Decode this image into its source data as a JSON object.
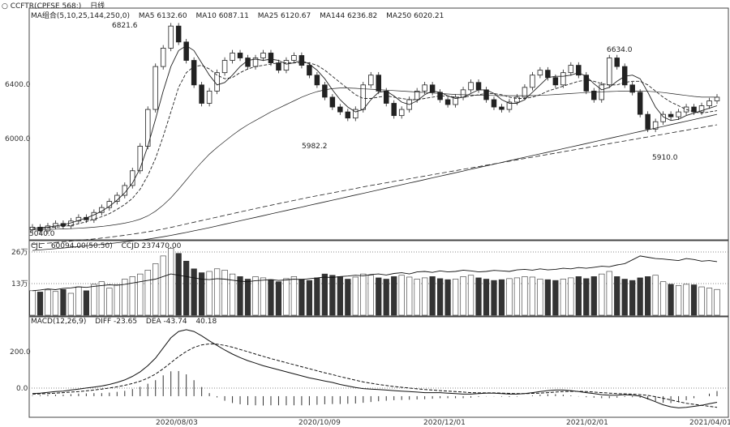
{
  "header": {
    "instrument": "○ CCFTR(CPFSE 568:)",
    "period": "日线",
    "ma_legend": [
      "MA组合(5,10,25,144,250,0)",
      "MA5 6132.60",
      "MA10 6087.11",
      "MA25 6120.67",
      "MA144 6236.82",
      "MA250 6020.21"
    ]
  },
  "price_panel": {
    "annotations": {
      "high_left": "6821.6",
      "low_mid": "5982.2",
      "high_right": "6634.0",
      "low_right": "5910.0",
      "bottom_left": "5040.0"
    }
  },
  "volume_panel": {
    "legend": [
      "CJL",
      "60094.00(50:50)",
      "CCJD 237470.00"
    ],
    "ticks": [
      "26万",
      "13万"
    ]
  },
  "macd_panel": {
    "legend": [
      "MACD(12,26,9)",
      "DIFF -23.65",
      "DEA -43.74",
      "40.18"
    ],
    "ticks": [
      "200.0",
      "0.0"
    ]
  },
  "x_axis": {
    "ticks": [
      "2020/08/03",
      "2020/10/09",
      "2020/12/01",
      "2021/02/01",
      "2021/04/01"
    ]
  },
  "chart_data": {
    "type": "line",
    "price_yticks": [
      6400.0,
      6000.0
    ],
    "price_ylim": [
      5050,
      6900
    ],
    "volume_ylim": [
      0,
      280000
    ],
    "macd_ylim": [
      -80,
      300
    ],
    "candles": [
      {
        "o": 5120,
        "c": 5140
      },
      {
        "o": 5140,
        "c": 5110
      },
      {
        "o": 5110,
        "c": 5150
      },
      {
        "o": 5150,
        "c": 5170
      },
      {
        "o": 5170,
        "c": 5150
      },
      {
        "o": 5150,
        "c": 5190
      },
      {
        "o": 5190,
        "c": 5220
      },
      {
        "o": 5220,
        "c": 5200
      },
      {
        "o": 5200,
        "c": 5260
      },
      {
        "o": 5260,
        "c": 5300
      },
      {
        "o": 5300,
        "c": 5350
      },
      {
        "o": 5350,
        "c": 5400
      },
      {
        "o": 5400,
        "c": 5480
      },
      {
        "o": 5480,
        "c": 5600
      },
      {
        "o": 5600,
        "c": 5800
      },
      {
        "o": 5800,
        "c": 6100
      },
      {
        "o": 6100,
        "c": 6450
      },
      {
        "o": 6450,
        "c": 6600
      },
      {
        "o": 6600,
        "c": 6780
      },
      {
        "o": 6780,
        "c": 6650
      },
      {
        "o": 6650,
        "c": 6500
      },
      {
        "o": 6500,
        "c": 6300
      },
      {
        "o": 6300,
        "c": 6150
      },
      {
        "o": 6150,
        "c": 6250
      },
      {
        "o": 6250,
        "c": 6400
      },
      {
        "o": 6400,
        "c": 6500
      },
      {
        "o": 6500,
        "c": 6560
      },
      {
        "o": 6560,
        "c": 6520
      },
      {
        "o": 6520,
        "c": 6450
      },
      {
        "o": 6450,
        "c": 6520
      },
      {
        "o": 6520,
        "c": 6560
      },
      {
        "o": 6560,
        "c": 6480
      },
      {
        "o": 6480,
        "c": 6420
      },
      {
        "o": 6420,
        "c": 6500
      },
      {
        "o": 6500,
        "c": 6540
      },
      {
        "o": 6540,
        "c": 6460
      },
      {
        "o": 6460,
        "c": 6380
      },
      {
        "o": 6380,
        "c": 6300
      },
      {
        "o": 6300,
        "c": 6200
      },
      {
        "o": 6200,
        "c": 6120
      },
      {
        "o": 6120,
        "c": 6080
      },
      {
        "o": 6080,
        "c": 6030
      },
      {
        "o": 6030,
        "c": 6100
      },
      {
        "o": 6100,
        "c": 6300
      },
      {
        "o": 6300,
        "c": 6380
      },
      {
        "o": 6380,
        "c": 6250
      },
      {
        "o": 6250,
        "c": 6150
      },
      {
        "o": 6150,
        "c": 6050
      },
      {
        "o": 6050,
        "c": 6100
      },
      {
        "o": 6100,
        "c": 6180
      },
      {
        "o": 6180,
        "c": 6250
      },
      {
        "o": 6250,
        "c": 6300
      },
      {
        "o": 6300,
        "c": 6240
      },
      {
        "o": 6240,
        "c": 6180
      },
      {
        "o": 6180,
        "c": 6140
      },
      {
        "o": 6140,
        "c": 6200
      },
      {
        "o": 6200,
        "c": 6260
      },
      {
        "o": 6260,
        "c": 6320
      },
      {
        "o": 6320,
        "c": 6260
      },
      {
        "o": 6260,
        "c": 6180
      },
      {
        "o": 6180,
        "c": 6120
      },
      {
        "o": 6120,
        "c": 6100
      },
      {
        "o": 6100,
        "c": 6160
      },
      {
        "o": 6160,
        "c": 6200
      },
      {
        "o": 6200,
        "c": 6280
      },
      {
        "o": 6280,
        "c": 6380
      },
      {
        "o": 6380,
        "c": 6420
      },
      {
        "o": 6420,
        "c": 6360
      },
      {
        "o": 6360,
        "c": 6300
      },
      {
        "o": 6300,
        "c": 6400
      },
      {
        "o": 6400,
        "c": 6460
      },
      {
        "o": 6460,
        "c": 6380
      },
      {
        "o": 6380,
        "c": 6250
      },
      {
        "o": 6250,
        "c": 6180
      },
      {
        "o": 6180,
        "c": 6300
      },
      {
        "o": 6300,
        "c": 6520
      },
      {
        "o": 6520,
        "c": 6450
      },
      {
        "o": 6450,
        "c": 6300
      },
      {
        "o": 6300,
        "c": 6240
      },
      {
        "o": 6240,
        "c": 6060
      },
      {
        "o": 6060,
        "c": 5940
      },
      {
        "o": 5940,
        "c": 6000
      },
      {
        "o": 6000,
        "c": 6060
      },
      {
        "o": 6060,
        "c": 6040
      },
      {
        "o": 6040,
        "c": 6080
      },
      {
        "o": 6080,
        "c": 6120
      },
      {
        "o": 6120,
        "c": 6080
      },
      {
        "o": 6080,
        "c": 6130
      },
      {
        "o": 6130,
        "c": 6170
      },
      {
        "o": 6170,
        "c": 6200
      }
    ],
    "ma_lines": [
      {
        "name": "MA5",
        "values": [
          5130,
          5135,
          5140,
          5150,
          5160,
          5175,
          5195,
          5215,
          5240,
          5270,
          5310,
          5360,
          5420,
          5500,
          5620,
          5800,
          6020,
          6250,
          6450,
          6580,
          6620,
          6580,
          6480,
          6380,
          6300,
          6320,
          6380,
          6450,
          6500,
          6510,
          6500,
          6510,
          6500,
          6470,
          6480,
          6500,
          6470,
          6420,
          6350,
          6260,
          6180,
          6120,
          6080,
          6100,
          6180,
          6240,
          6250,
          6210,
          6160,
          6140,
          6170,
          6220,
          6250,
          6240,
          6210,
          6190,
          6200,
          6230,
          6260,
          6260,
          6230,
          6180,
          6150,
          6150,
          6180,
          6240,
          6300,
          6360,
          6370,
          6370,
          6380,
          6400,
          6370,
          6310,
          6260,
          6280,
          6330,
          6370,
          6380,
          6350,
          6240,
          6120,
          6040,
          6010,
          6020,
          6050,
          6070,
          6090,
          6110,
          6130
        ]
      },
      {
        "name": "MA10",
        "values": [
          5130,
          5132,
          5135,
          5140,
          5145,
          5155,
          5168,
          5185,
          5205,
          5225,
          5250,
          5285,
          5325,
          5375,
          5450,
          5560,
          5700,
          5880,
          6080,
          6280,
          6400,
          6450,
          6460,
          6430,
          6380,
          6350,
          6360,
          6400,
          6430,
          6450,
          6460,
          6470,
          6480,
          6480,
          6480,
          6480,
          6480,
          6460,
          6420,
          6370,
          6320,
          6270,
          6220,
          6190,
          6190,
          6200,
          6210,
          6200,
          6190,
          6180,
          6180,
          6190,
          6200,
          6210,
          6210,
          6200,
          6200,
          6210,
          6220,
          6230,
          6230,
          6220,
          6200,
          6190,
          6190,
          6200,
          6220,
          6250,
          6270,
          6290,
          6310,
          6330,
          6340,
          6330,
          6310,
          6300,
          6300,
          6320,
          6330,
          6330,
          6300,
          6250,
          6200,
          6160,
          6130,
          6100,
          6080,
          6070,
          6080,
          6090
        ]
      },
      {
        "name": "MA25",
        "values": [
          5120,
          5121,
          5122,
          5124,
          5126,
          5128,
          5131,
          5135,
          5140,
          5146,
          5153,
          5162,
          5173,
          5187,
          5205,
          5232,
          5270,
          5320,
          5380,
          5450,
          5525,
          5600,
          5670,
          5735,
          5790,
          5840,
          5890,
          5935,
          5975,
          6010,
          6045,
          6080,
          6110,
          6140,
          6170,
          6200,
          6225,
          6245,
          6260,
          6270,
          6275,
          6275,
          6272,
          6268,
          6265,
          6262,
          6258,
          6254,
          6250,
          6246,
          6242,
          6238,
          6234,
          6230,
          6226,
          6222,
          6220,
          6218,
          6216,
          6215,
          6214,
          6213,
          6212,
          6212,
          6212,
          6213,
          6215,
          6218,
          6222,
          6226,
          6230,
          6234,
          6238,
          6241,
          6244,
          6246,
          6248,
          6250,
          6250,
          6250,
          6248,
          6244,
          6238,
          6230,
          6222,
          6214,
          6206,
          6200,
          6200,
          6200
        ]
      },
      {
        "name": "MA144",
        "values": [
          5000,
          5005,
          5010,
          5015,
          5020,
          5026,
          5032,
          5038,
          5044,
          5051,
          5058,
          5066,
          5074,
          5083,
          5092,
          5102,
          5113,
          5125,
          5138,
          5152,
          5166,
          5180,
          5194,
          5208,
          5222,
          5236,
          5250,
          5264,
          5278,
          5292,
          5306,
          5319,
          5332,
          5345,
          5358,
          5371,
          5384,
          5396,
          5408,
          5420,
          5432,
          5444,
          5456,
          5468,
          5480,
          5491,
          5502,
          5513,
          5524,
          5535,
          5546,
          5557,
          5568,
          5579,
          5590,
          5601,
          5612,
          5623,
          5634,
          5645,
          5656,
          5667,
          5678,
          5689,
          5700,
          5711,
          5722,
          5733,
          5744,
          5755,
          5766,
          5777,
          5788,
          5799,
          5810,
          5821,
          5832,
          5843,
          5854,
          5865,
          5876,
          5887,
          5898,
          5909,
          5920,
          5931,
          5942,
          5953,
          5964,
          5975
        ]
      },
      {
        "name": "MA250",
        "values": [
          4950,
          4955,
          4960,
          4965,
          4970,
          4976,
          4982,
          4988,
          4994,
          5000,
          5006,
          5013,
          5020,
          5027,
          5035,
          5043,
          5052,
          5062,
          5073,
          5085,
          5097,
          5110,
          5123,
          5136,
          5150,
          5164,
          5178,
          5192,
          5206,
          5220,
          5234,
          5248,
          5262,
          5276,
          5290,
          5304,
          5318,
          5332,
          5346,
          5360,
          5374,
          5388,
          5402,
          5416,
          5430,
          5444,
          5458,
          5472,
          5486,
          5500,
          5514,
          5528,
          5542,
          5556,
          5570,
          5584,
          5598,
          5612,
          5626,
          5640,
          5654,
          5668,
          5682,
          5696,
          5710,
          5724,
          5738,
          5752,
          5766,
          5780,
          5794,
          5808,
          5822,
          5836,
          5850,
          5864,
          5878,
          5892,
          5906,
          5920,
          5934,
          5948,
          5962,
          5976,
          5990,
          6004,
          6018,
          6032,
          6046,
          6060
        ]
      }
    ],
    "volume": [
      95000,
      90000,
      98000,
      92000,
      100000,
      85000,
      110000,
      95000,
      120000,
      130000,
      105000,
      118000,
      140000,
      150000,
      160000,
      175000,
      200000,
      230000,
      260000,
      240000,
      210000,
      180000,
      165000,
      170000,
      180000,
      175000,
      160000,
      150000,
      140000,
      150000,
      145000,
      138000,
      130000,
      142000,
      150000,
      140000,
      135000,
      145000,
      160000,
      155000,
      150000,
      140000,
      148000,
      160000,
      155000,
      145000,
      140000,
      150000,
      155000,
      148000,
      140000,
      145000,
      150000,
      142000,
      138000,
      140000,
      150000,
      155000,
      145000,
      140000,
      135000,
      138000,
      142000,
      145000,
      150000,
      148000,
      140000,
      138000,
      135000,
      140000,
      145000,
      150000,
      142000,
      150000,
      160000,
      170000,
      150000,
      140000,
      135000,
      145000,
      150000,
      155000,
      130000,
      120000,
      115000,
      120000,
      118000,
      110000,
      105000,
      100000
    ],
    "open_interest": [
      95000,
      98000,
      102000,
      99000,
      104000,
      106000,
      110000,
      108000,
      112000,
      115000,
      118000,
      116000,
      120000,
      125000,
      130000,
      135000,
      140000,
      150000,
      160000,
      155000,
      150000,
      145000,
      140000,
      138000,
      142000,
      140000,
      136000,
      132000,
      130000,
      134000,
      136000,
      138000,
      135000,
      137000,
      140000,
      138000,
      142000,
      145000,
      148000,
      146000,
      150000,
      152000,
      155000,
      153000,
      158000,
      160000,
      156000,
      162000,
      165000,
      160000,
      168000,
      170000,
      166000,
      172000,
      168000,
      170000,
      175000,
      172000,
      168000,
      170000,
      174000,
      172000,
      170000,
      176000,
      178000,
      175000,
      180000,
      176000,
      178000,
      182000,
      180000,
      185000,
      182000,
      186000,
      190000,
      188000,
      195000,
      200000,
      215000,
      230000,
      225000,
      220000,
      218000,
      215000,
      212000,
      220000,
      216000,
      210000,
      212000,
      208000
    ],
    "macd_diff": [
      10,
      12,
      15,
      18,
      20,
      24,
      28,
      32,
      36,
      40,
      46,
      54,
      64,
      78,
      96,
      120,
      150,
      190,
      230,
      255,
      262,
      255,
      238,
      218,
      200,
      182,
      166,
      152,
      140,
      130,
      120,
      112,
      104,
      96,
      88,
      80,
      72,
      66,
      60,
      54,
      46,
      40,
      34,
      30,
      28,
      26,
      24,
      22,
      20,
      18,
      16,
      14,
      14,
      14,
      12,
      10,
      8,
      8,
      10,
      12,
      12,
      10,
      8,
      8,
      10,
      14,
      18,
      22,
      24,
      24,
      22,
      18,
      14,
      10,
      6,
      4,
      4,
      6,
      4,
      0,
      -10,
      -22,
      -34,
      -42,
      -46,
      -44,
      -40,
      -36,
      -30,
      -24
    ],
    "macd_dea": [
      8,
      9,
      10,
      12,
      14,
      16,
      18,
      21,
      24,
      28,
      32,
      37,
      43,
      50,
      59,
      71,
      87,
      108,
      132,
      156,
      176,
      192,
      202,
      206,
      205,
      200,
      193,
      184,
      175,
      166,
      157,
      148,
      140,
      132,
      124,
      116,
      108,
      100,
      92,
      85,
      77,
      70,
      63,
      56,
      51,
      46,
      42,
      38,
      35,
      32,
      29,
      26,
      24,
      22,
      20,
      18,
      16,
      14,
      13,
      13,
      13,
      12,
      11,
      10,
      10,
      11,
      12,
      14,
      16,
      18,
      19,
      19,
      18,
      16,
      14,
      12,
      10,
      9,
      8,
      6,
      3,
      -2,
      -8,
      -15,
      -22,
      -28,
      -32,
      -36,
      -40,
      -44
    ],
    "macd_hist": [
      2,
      3,
      5,
      6,
      6,
      8,
      10,
      11,
      12,
      12,
      14,
      17,
      21,
      28,
      37,
      49,
      63,
      82,
      98,
      99,
      86,
      63,
      36,
      12,
      -5,
      -18,
      -27,
      -32,
      -35,
      -36,
      -37,
      -36,
      -36,
      -36,
      -36,
      -36,
      -36,
      -34,
      -32,
      -31,
      -31,
      -30,
      -29,
      -26,
      -23,
      -20,
      -18,
      -16,
      -15,
      -14,
      -13,
      -12,
      -10,
      -8,
      -8,
      -8,
      -8,
      -6,
      -3,
      -1,
      -1,
      -2,
      -3,
      -2,
      0,
      3,
      6,
      8,
      8,
      6,
      3,
      -1,
      -4,
      -6,
      -8,
      -8,
      -6,
      -3,
      -4,
      -6,
      -13,
      -20,
      -26,
      -27,
      -24,
      -16,
      -8,
      0,
      10,
      20
    ]
  }
}
